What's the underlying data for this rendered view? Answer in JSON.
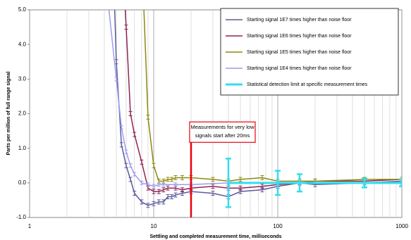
{
  "chart_data": {
    "type": "line",
    "xscale": "log",
    "xlabel": "Settling and completed measurement time, milliseconds",
    "ylabel": "Parts per million of full range signal",
    "xlim": [
      1,
      1000
    ],
    "xticks": [
      1,
      10,
      100,
      1000
    ],
    "xgrid_ticks": [
      2,
      3,
      4,
      5,
      6,
      7,
      8,
      9,
      20,
      30,
      40,
      50,
      60,
      70,
      80,
      90,
      200,
      300,
      400,
      500,
      600,
      700,
      800,
      900
    ],
    "ylim": [
      -1,
      5
    ],
    "yticks": [
      {
        "value": -1,
        "label": "-1.0"
      },
      {
        "value": 0,
        "label": "0.0"
      },
      {
        "value": 1,
        "label": "1.0"
      },
      {
        "value": 2,
        "label": "2.0"
      },
      {
        "value": 3,
        "label": "3.0"
      },
      {
        "value": 4,
        "label": "4.0"
      },
      {
        "value": 5,
        "label": "5.0"
      }
    ],
    "grid": true,
    "legend": "top-right",
    "series": [
      {
        "name": "Starting signal 1E7 times higher than noise floor",
        "color": "#5c5a9c",
        "error": 0.06,
        "x": [
          4.8,
          5,
          5.5,
          6,
          6.5,
          7,
          8,
          9,
          10,
          11,
          12,
          13,
          14,
          15,
          17,
          20,
          30,
          40,
          50,
          75,
          100,
          150,
          200,
          500,
          1000
        ],
        "values": [
          5.5,
          3.5,
          1.1,
          0.5,
          0.1,
          -0.3,
          -0.55,
          -0.65,
          -0.6,
          -0.55,
          -0.55,
          -0.4,
          -0.4,
          -0.35,
          -0.3,
          -0.25,
          -0.3,
          -0.4,
          -0.25,
          -0.2,
          -0.1,
          0.0,
          -0.05,
          0.0,
          0.05
        ]
      },
      {
        "name": "Starting signal 1E6 times higher than noise floor",
        "color": "#8e2454",
        "error": 0.06,
        "x": [
          5.8,
          6,
          6.5,
          7,
          8,
          9,
          10,
          11,
          12,
          13,
          15,
          17,
          20,
          30,
          40,
          50,
          75,
          100,
          150,
          200,
          500,
          1000
        ],
        "values": [
          5.5,
          4.5,
          2.0,
          1.4,
          0.6,
          -0.15,
          -0.25,
          -0.25,
          -0.2,
          -0.15,
          -0.15,
          -0.2,
          -0.15,
          -0.1,
          -0.15,
          -0.15,
          -0.1,
          -0.05,
          0.0,
          0.05,
          0.05,
          0.1
        ]
      },
      {
        "name": "Starting signal 1E5 times higher than noise floor",
        "color": "#8c8a10",
        "error": 0.06,
        "x": [
          8.3,
          9,
          10,
          11,
          12,
          13,
          14,
          15,
          17,
          20,
          30,
          40,
          50,
          75,
          100,
          150,
          200,
          500,
          1000
        ],
        "values": [
          5.2,
          1.9,
          0.5,
          0.05,
          0.05,
          0.1,
          0.1,
          0.15,
          0.15,
          0.15,
          0.1,
          0.05,
          0.1,
          0.15,
          0.05,
          0.05,
          0.05,
          0.1,
          0.1
        ]
      },
      {
        "name": "Starting signal 1E4 times higher than noise floor",
        "color": "#9c9cee",
        "error": 0.05,
        "x": [
          4.3,
          5,
          5.5,
          6,
          6.5,
          7,
          8,
          9,
          10,
          11,
          12,
          15,
          20,
          40,
          100,
          1000
        ],
        "values": [
          5.2,
          3.0,
          1.6,
          0.9,
          0.5,
          0.25,
          0.0,
          -0.05,
          -0.1,
          -0.05,
          -0.05,
          -0.05,
          -0.05,
          0.0,
          0.0,
          0.0
        ]
      },
      {
        "name": "Statistical detection limit at specific measurement times",
        "color": "#33ddee",
        "width": 3,
        "x": [
          40,
          100,
          150,
          500,
          1000
        ],
        "values": [
          0,
          0,
          0,
          0,
          0
        ],
        "errors": [
          0.7,
          0.35,
          0.25,
          0.13,
          0.1
        ]
      }
    ],
    "annotation": {
      "x": 20,
      "y": 1.7,
      "color": "#e8000c",
      "lines": [
        "Measurements for very low",
        "signals start after 20ms"
      ]
    }
  }
}
